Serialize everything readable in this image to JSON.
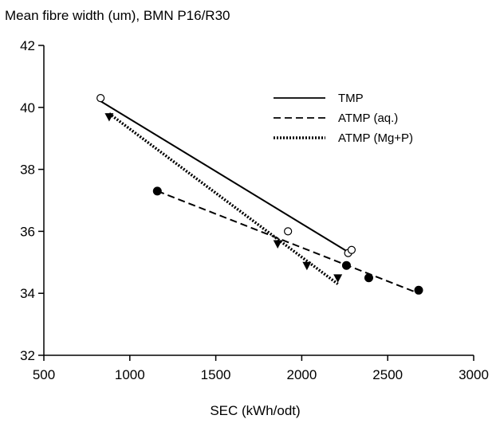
{
  "chart_data": {
    "type": "scatter",
    "title": "Mean fibre width (um), BMN P16/R30",
    "xlabel": "SEC (kWh/odt)",
    "ylabel": "",
    "xlim": [
      500,
      3000
    ],
    "ylim": [
      32,
      42
    ],
    "xticks": [
      500,
      1000,
      1500,
      2000,
      2500,
      3000
    ],
    "yticks": [
      32,
      34,
      36,
      38,
      40,
      42
    ],
    "grid": false,
    "legend_position": "top-right",
    "series": [
      {
        "name": "TMP",
        "marker": "circle-open",
        "line_style": "solid",
        "points": [
          [
            830,
            40.3
          ],
          [
            1920,
            36.0
          ],
          [
            2270,
            35.3
          ],
          [
            2290,
            35.4
          ]
        ],
        "fit_line": [
          [
            830,
            40.2
          ],
          [
            2280,
            35.3
          ]
        ]
      },
      {
        "name": "ATMP (aq.)",
        "marker": "circle-filled",
        "line_style": "dashed",
        "points": [
          [
            1160,
            37.3
          ],
          [
            2260,
            34.9
          ],
          [
            2390,
            34.5
          ],
          [
            2680,
            34.1
          ]
        ],
        "fit_line": [
          [
            1160,
            37.3
          ],
          [
            2680,
            34.0
          ]
        ]
      },
      {
        "name": "ATMP (Mg+P)",
        "marker": "triangle-down-filled",
        "line_style": "dotted",
        "points": [
          [
            880,
            39.7
          ],
          [
            1860,
            35.6
          ],
          [
            2030,
            34.9
          ],
          [
            2210,
            34.5
          ]
        ],
        "fit_line": [
          [
            880,
            39.8
          ],
          [
            2210,
            34.3
          ]
        ]
      }
    ]
  }
}
